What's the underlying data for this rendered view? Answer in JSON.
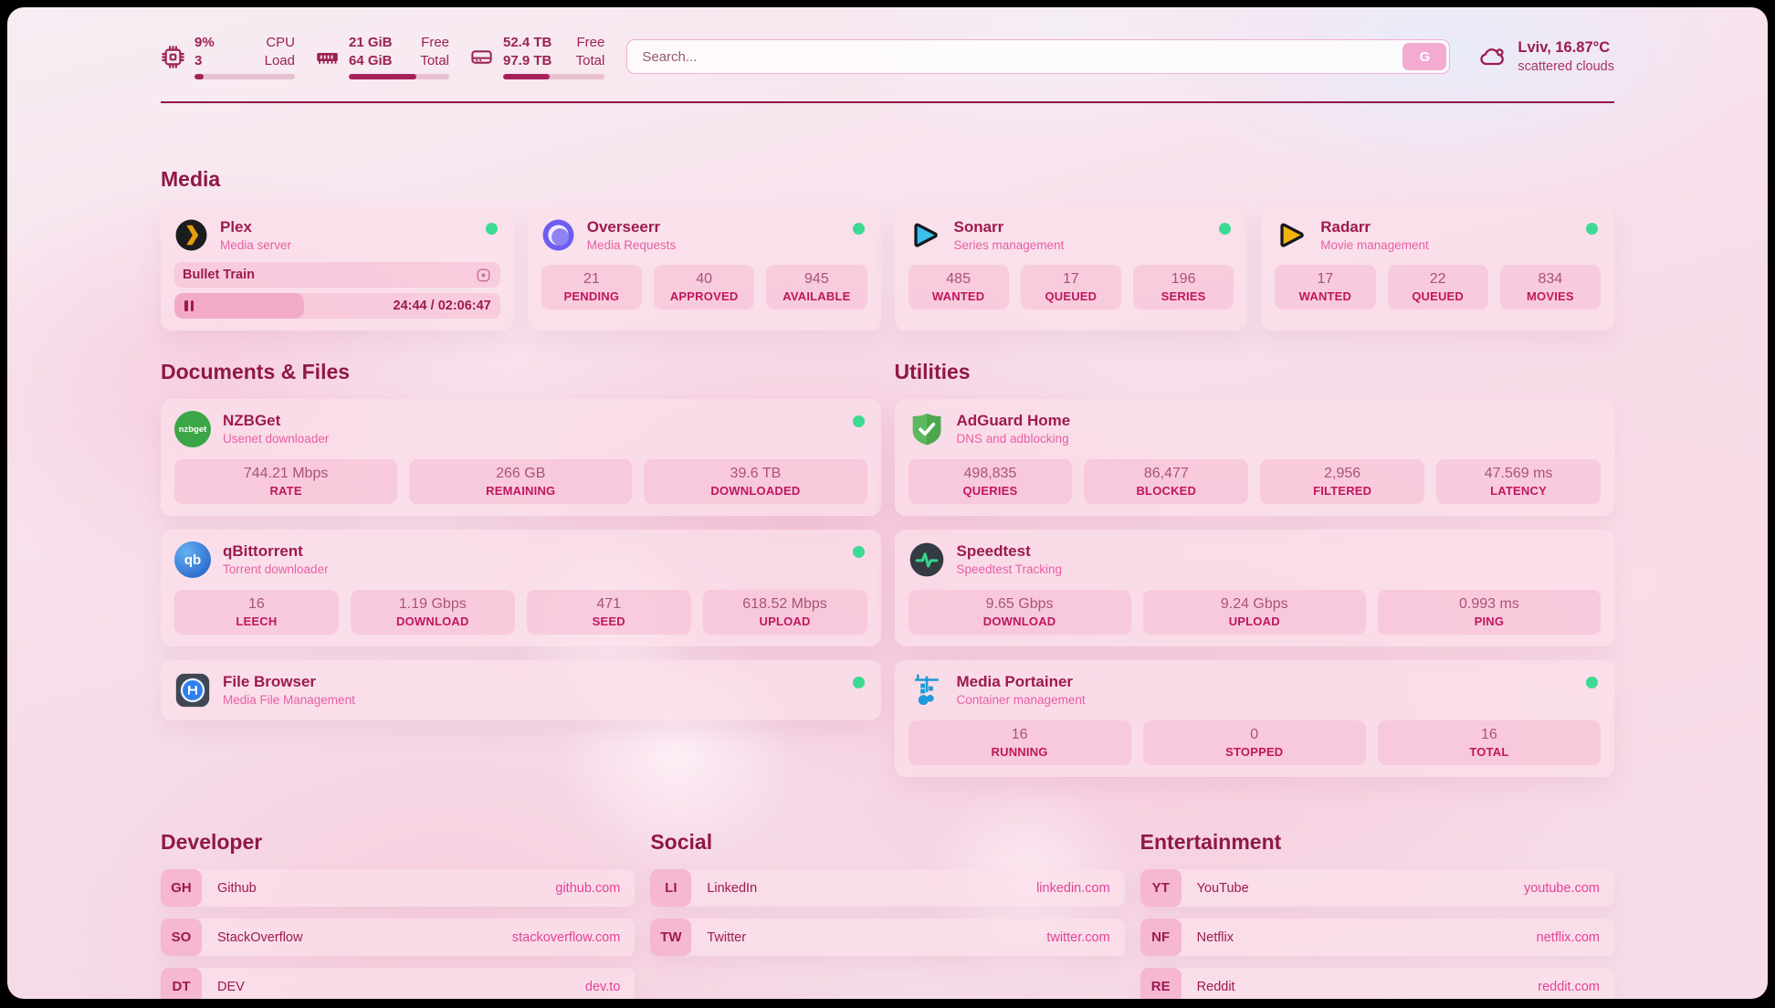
{
  "topbar": {
    "cpu": {
      "value_top": "9%",
      "value_bottom": "3",
      "label_top": "CPU",
      "label_bottom": "Load",
      "progress": 9
    },
    "ram": {
      "value_top": "21 GiB",
      "value_bottom": "64 GiB",
      "label_top": "Free",
      "label_bottom": "Total",
      "progress": 67
    },
    "disk": {
      "value_top": "52.4 TB",
      "value_bottom": "97.9 TB",
      "label_top": "Free",
      "label_bottom": "Total",
      "progress": 46
    },
    "search": {
      "placeholder": "Search...",
      "button_label": "G"
    },
    "weather": {
      "location": "Lviv, 16.87°C",
      "condition": "scattered clouds"
    }
  },
  "sections": {
    "media": {
      "title": "Media",
      "apps": [
        {
          "name": "Plex",
          "subtitle": "Media server",
          "online": true,
          "now_playing": {
            "title": "Bullet Train",
            "time": "24:44 / 02:06:47"
          }
        },
        {
          "name": "Overseerr",
          "subtitle": "Media Requests",
          "online": true,
          "stats": [
            {
              "value": "21",
              "label": "PENDING"
            },
            {
              "value": "40",
              "label": "APPROVED"
            },
            {
              "value": "945",
              "label": "AVAILABLE"
            }
          ]
        },
        {
          "name": "Sonarr",
          "subtitle": "Series management",
          "online": true,
          "stats": [
            {
              "value": "485",
              "label": "WANTED"
            },
            {
              "value": "17",
              "label": "QUEUED"
            },
            {
              "value": "196",
              "label": "SERIES"
            }
          ]
        },
        {
          "name": "Radarr",
          "subtitle": "Movie management",
          "online": true,
          "stats": [
            {
              "value": "17",
              "label": "WANTED"
            },
            {
              "value": "22",
              "label": "QUEUED"
            },
            {
              "value": "834",
              "label": "MOVIES"
            }
          ]
        }
      ]
    },
    "documents": {
      "title": "Documents & Files",
      "apps": [
        {
          "name": "NZBGet",
          "subtitle": "Usenet downloader",
          "online": true,
          "stats": [
            {
              "value": "744.21 Mbps",
              "label": "RATE"
            },
            {
              "value": "266 GB",
              "label": "REMAINING"
            },
            {
              "value": "39.6 TB",
              "label": "DOWNLOADED"
            }
          ]
        },
        {
          "name": "qBittorrent",
          "subtitle": "Torrent downloader",
          "online": true,
          "stats": [
            {
              "value": "16",
              "label": "LEECH"
            },
            {
              "value": "1.19 Gbps",
              "label": "DOWNLOAD"
            },
            {
              "value": "471",
              "label": "SEED"
            },
            {
              "value": "618.52 Mbps",
              "label": "UPLOAD"
            }
          ]
        },
        {
          "name": "File Browser",
          "subtitle": "Media File Management",
          "online": true,
          "stats": []
        }
      ]
    },
    "utilities": {
      "title": "Utilities",
      "apps": [
        {
          "name": "AdGuard Home",
          "subtitle": "DNS and adblocking",
          "online": false,
          "stats": [
            {
              "value": "498,835",
              "label": "QUERIES"
            },
            {
              "value": "86,477",
              "label": "BLOCKED"
            },
            {
              "value": "2,956",
              "label": "FILTERED"
            },
            {
              "value": "47.569 ms",
              "label": "LATENCY"
            }
          ]
        },
        {
          "name": "Speedtest",
          "subtitle": "Speedtest Tracking",
          "online": false,
          "stats": [
            {
              "value": "9.65 Gbps",
              "label": "DOWNLOAD"
            },
            {
              "value": "9.24 Gbps",
              "label": "UPLOAD"
            },
            {
              "value": "0.993 ms",
              "label": "PING"
            }
          ]
        },
        {
          "name": "Media Portainer",
          "subtitle": "Container management",
          "online": true,
          "stats": [
            {
              "value": "16",
              "label": "RUNNING"
            },
            {
              "value": "0",
              "label": "STOPPED"
            },
            {
              "value": "16",
              "label": "TOTAL"
            }
          ]
        }
      ]
    },
    "developer": {
      "title": "Developer",
      "links": [
        {
          "abbr": "GH",
          "name": "Github",
          "url": "github.com"
        },
        {
          "abbr": "SO",
          "name": "StackOverflow",
          "url": "stackoverflow.com"
        },
        {
          "abbr": "DT",
          "name": "DEV",
          "url": "dev.to"
        }
      ]
    },
    "social": {
      "title": "Social",
      "links": [
        {
          "abbr": "LI",
          "name": "LinkedIn",
          "url": "linkedin.com"
        },
        {
          "abbr": "TW",
          "name": "Twitter",
          "url": "twitter.com"
        }
      ]
    },
    "entertainment": {
      "title": "Entertainment",
      "links": [
        {
          "abbr": "YT",
          "name": "YouTube",
          "url": "youtube.com"
        },
        {
          "abbr": "NF",
          "name": "Netflix",
          "url": "netflix.com"
        },
        {
          "abbr": "RE",
          "name": "Reddit",
          "url": "reddit.com"
        }
      ]
    }
  },
  "colors": {
    "accent": "#9c1b50",
    "heading": "#8f1848",
    "subtitle_pink": "#e75fa4",
    "stat_label": "#bf175e",
    "url_pink": "#e2439a",
    "online_green": "#3ed992",
    "progress_fill": "#a6215a"
  }
}
